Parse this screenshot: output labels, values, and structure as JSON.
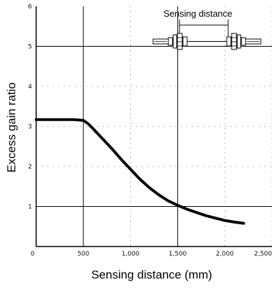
{
  "chart_data": {
    "type": "line",
    "title": "",
    "xlabel": "Sensing distance (mm)",
    "ylabel": "Excess gain ratio",
    "xlim": [
      0,
      2500
    ],
    "ylim": [
      0,
      6
    ],
    "x_ticks": [
      "0",
      "500",
      "1,000",
      "1,500",
      "2,000",
      "2,500"
    ],
    "y_ticks": [
      "0",
      "1",
      "2",
      "3",
      "4",
      "5",
      "6"
    ],
    "grid": "dotted",
    "series": [
      {
        "x": [
          0,
          100,
          200,
          300,
          400,
          500,
          550,
          600,
          700,
          800,
          900,
          1000,
          1100,
          1200,
          1300,
          1400,
          1500,
          1600,
          1700,
          1800,
          1900,
          2000,
          2100,
          2200
        ],
        "y": [
          3.17,
          3.17,
          3.17,
          3.17,
          3.17,
          3.15,
          3.07,
          2.95,
          2.7,
          2.45,
          2.18,
          1.93,
          1.68,
          1.47,
          1.29,
          1.14,
          1.03,
          0.93,
          0.85,
          0.77,
          0.71,
          0.65,
          0.61,
          0.58
        ]
      }
    ],
    "annotation": {
      "label": "Sensing distance"
    }
  }
}
